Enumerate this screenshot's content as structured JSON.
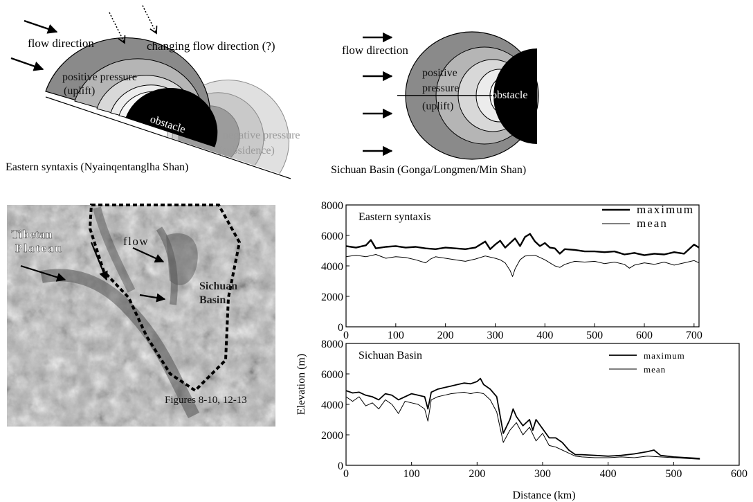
{
  "panel_a": {
    "flow_label": "flow direction",
    "changing_label": "changing flow direction (?)",
    "positive_label": [
      "positive pressure",
      "(uplift)"
    ],
    "obstacle_label": "obstacle",
    "negative_label": [
      "negative pressure",
      "(subsidence)"
    ],
    "caption": "Eastern syntaxis (Nyainqentanglha Shan)"
  },
  "panel_b": {
    "flow_label": "flow direction",
    "positive_label": [
      "positive",
      "pressure",
      "(uplift)"
    ],
    "obstacle_label": "obstacle",
    "caption": "Sichuan Basin (Gonga/Longmen/Min Shan)"
  },
  "map": {
    "tibetan_label": [
      "Tibetan",
      "Plateau"
    ],
    "flow_label": "flow",
    "sichuan_label": [
      "Sichuan",
      "Basin"
    ],
    "figures_label": "Figures 8-10, 12-13",
    "colors": {
      "dashed_outline": "#000000",
      "terrain": "#a9a9a9"
    }
  },
  "shared": {
    "ylabel": "Elevation (m)",
    "xlabel": "Distance (km)"
  },
  "chart_data": [
    {
      "type": "line",
      "title": "Eastern syntaxis",
      "xlabel": "",
      "ylabel": "Elevation (m)",
      "xlim": [
        0,
        710
      ],
      "ylim": [
        0,
        8000
      ],
      "xticks": [
        0,
        100,
        200,
        300,
        400,
        500,
        600,
        700
      ],
      "yticks": [
        0,
        2000,
        4000,
        6000,
        8000
      ],
      "legend": "top-right",
      "series": [
        {
          "name": "maximum",
          "x": [
            0,
            20,
            40,
            50,
            60,
            80,
            100,
            120,
            140,
            160,
            180,
            200,
            220,
            240,
            260,
            280,
            290,
            300,
            310,
            320,
            330,
            340,
            350,
            360,
            370,
            380,
            390,
            400,
            410,
            420,
            430,
            440,
            460,
            480,
            500,
            520,
            540,
            560,
            580,
            600,
            620,
            640,
            660,
            680,
            700,
            710
          ],
          "y": [
            5300,
            5200,
            5350,
            5700,
            5150,
            5250,
            5300,
            5200,
            5250,
            5150,
            5100,
            5200,
            5150,
            5100,
            5200,
            5600,
            5100,
            5400,
            5650,
            5200,
            5500,
            5800,
            5300,
            5900,
            6100,
            5600,
            5300,
            5500,
            5200,
            5150,
            4800,
            5100,
            5050,
            4950,
            4950,
            4900,
            4950,
            4750,
            4850,
            4700,
            4800,
            4750,
            4900,
            4800,
            5400,
            5200
          ]
        },
        {
          "name": "mean",
          "x": [
            0,
            20,
            40,
            60,
            80,
            100,
            120,
            140,
            160,
            170,
            180,
            200,
            220,
            240,
            260,
            280,
            300,
            310,
            320,
            330,
            335,
            340,
            350,
            360,
            380,
            400,
            420,
            430,
            440,
            460,
            480,
            500,
            520,
            540,
            560,
            570,
            580,
            600,
            620,
            640,
            660,
            680,
            700,
            710
          ],
          "y": [
            4600,
            4700,
            4600,
            4750,
            4500,
            4600,
            4550,
            4400,
            4200,
            4450,
            4600,
            4500,
            4400,
            4300,
            4450,
            4650,
            4500,
            4400,
            4200,
            3700,
            3300,
            3800,
            4400,
            4650,
            4700,
            4400,
            4000,
            3900,
            4100,
            4300,
            4250,
            4300,
            4150,
            4250,
            4100,
            3850,
            4050,
            4200,
            4100,
            4250,
            4050,
            4200,
            4350,
            4200
          ]
        }
      ]
    },
    {
      "type": "line",
      "title": "Sichuan Basin",
      "xlabel": "Distance (km)",
      "ylabel": "Elevation (m)",
      "xlim": [
        0,
        600
      ],
      "ylim": [
        0,
        8000
      ],
      "xticks": [
        0,
        100,
        200,
        300,
        400,
        500,
        600
      ],
      "yticks": [
        0,
        2000,
        4000,
        6000,
        8000
      ],
      "legend": "top-right",
      "series": [
        {
          "name": "maximum",
          "x": [
            0,
            10,
            20,
            30,
            40,
            50,
            60,
            70,
            80,
            90,
            100,
            110,
            120,
            125,
            130,
            140,
            150,
            160,
            170,
            180,
            190,
            200,
            205,
            210,
            220,
            230,
            240,
            250,
            255,
            260,
            270,
            280,
            285,
            290,
            300,
            310,
            320,
            330,
            340,
            350,
            360,
            380,
            400,
            420,
            440,
            460,
            470,
            480,
            500,
            520,
            540
          ],
          "y": [
            4900,
            4750,
            4800,
            4600,
            4500,
            4300,
            4700,
            4600,
            4300,
            4500,
            4700,
            4600,
            4500,
            3700,
            4800,
            5000,
            5100,
            5200,
            5300,
            5400,
            5350,
            5500,
            5700,
            5300,
            5000,
            4500,
            2100,
            3000,
            3700,
            3200,
            2600,
            3000,
            2300,
            3000,
            2400,
            1800,
            1800,
            1500,
            1000,
            700,
            700,
            650,
            600,
            650,
            750,
            900,
            1000,
            650,
            550,
            500,
            450
          ]
        },
        {
          "name": "mean",
          "x": [
            0,
            10,
            20,
            30,
            40,
            50,
            60,
            70,
            80,
            90,
            100,
            110,
            120,
            125,
            130,
            140,
            150,
            160,
            170,
            180,
            190,
            200,
            210,
            220,
            230,
            240,
            250,
            260,
            270,
            280,
            290,
            300,
            310,
            320,
            330,
            340,
            350,
            360,
            380,
            400,
            420,
            440,
            460,
            480,
            500,
            520,
            540
          ],
          "y": [
            4500,
            4200,
            4500,
            3900,
            4100,
            3700,
            4300,
            4000,
            3400,
            4200,
            4100,
            4000,
            3700,
            2900,
            4300,
            4500,
            4600,
            4700,
            4750,
            4800,
            4700,
            4800,
            4700,
            4300,
            3500,
            1500,
            2300,
            2800,
            2000,
            2500,
            1600,
            2100,
            1300,
            1200,
            1000,
            800,
            600,
            550,
            500,
            500,
            550,
            500,
            600,
            550,
            500,
            450,
            400
          ]
        }
      ]
    }
  ]
}
